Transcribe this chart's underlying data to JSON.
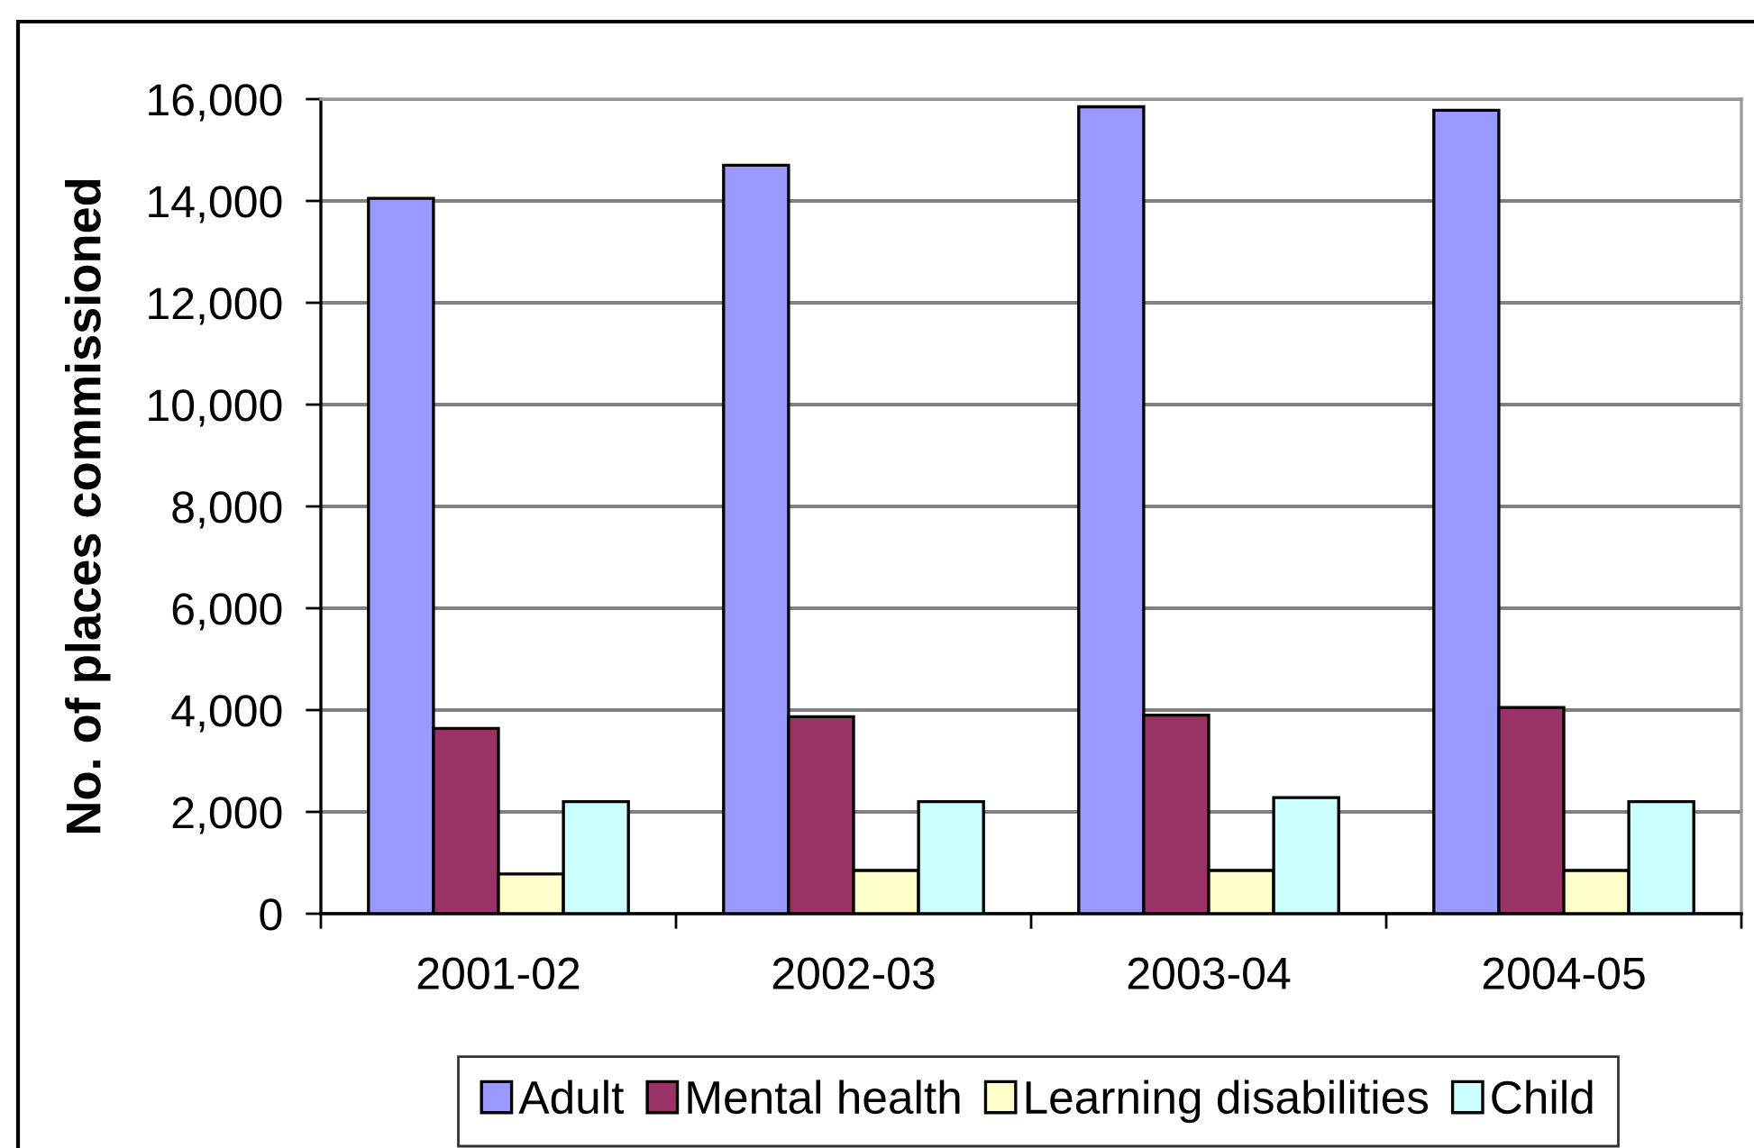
{
  "chart_data": {
    "type": "bar",
    "ylabel": "No. of places commissioned",
    "categories": [
      "2001-02",
      "2002-03",
      "2003-04",
      "2004-05"
    ],
    "series": [
      {
        "name": "Adult",
        "color": "#9999ff",
        "values": [
          14050,
          14700,
          15850,
          15780
        ]
      },
      {
        "name": "Mental health",
        "color": "#993366",
        "values": [
          3640,
          3870,
          3900,
          4050
        ]
      },
      {
        "name": "Learning disabilities",
        "color": "#ffffcc",
        "values": [
          780,
          850,
          850,
          850
        ]
      },
      {
        "name": "Child",
        "color": "#ccffff",
        "values": [
          2200,
          2200,
          2280,
          2200
        ]
      }
    ],
    "ylim": [
      0,
      16000
    ],
    "yticks": [
      {
        "value": 0,
        "label": "0"
      },
      {
        "value": 2000,
        "label": "2,000"
      },
      {
        "value": 4000,
        "label": "4,000"
      },
      {
        "value": 6000,
        "label": "6,000"
      },
      {
        "value": 8000,
        "label": "8,000"
      },
      {
        "value": 10000,
        "label": "10,000"
      },
      {
        "value": 12000,
        "label": "12,000"
      },
      {
        "value": 14000,
        "label": "14,000"
      },
      {
        "value": 16000,
        "label": "16,000"
      }
    ],
    "grid": "y",
    "legend": "bottom"
  }
}
